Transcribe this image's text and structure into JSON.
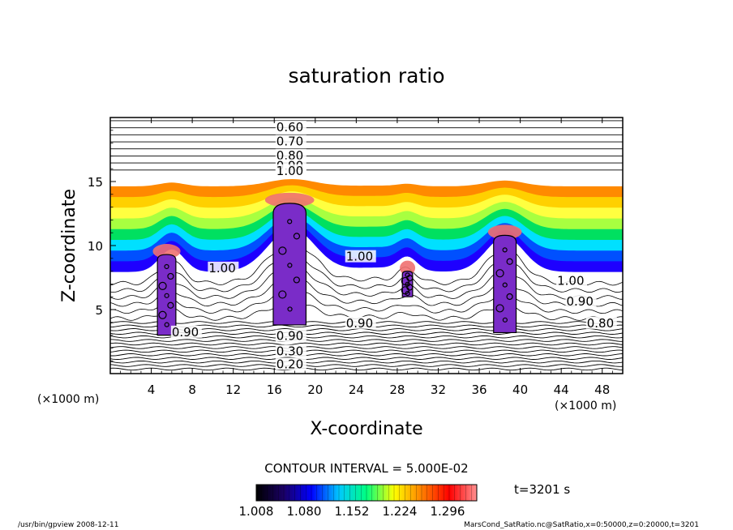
{
  "chart_data": {
    "type": "heatmap",
    "title": "saturation ratio",
    "xlabel": "X-coordinate",
    "ylabel": "Z-coordinate",
    "x_unit": "(×1000 m)",
    "y_unit": "(×1000 m)",
    "xlim": [
      0,
      50
    ],
    "ylim": [
      0,
      20
    ],
    "x_ticks": [
      4,
      8,
      12,
      16,
      20,
      24,
      28,
      32,
      36,
      40,
      44,
      48
    ],
    "y_ticks": [
      5,
      10,
      15
    ],
    "contour_interval_label": "CONTOUR INTERVAL = 5.000E-02",
    "time_label": "t=3201 s",
    "colorbar": {
      "min": 1.008,
      "max": 1.34,
      "tick_labels": [
        "1.008",
        "1.080",
        "1.152",
        "1.224",
        "1.296"
      ],
      "colors": [
        "#000000",
        "#1a0066",
        "#0000ff",
        "#00c8ff",
        "#00ff80",
        "#ffff00",
        "#ff8000",
        "#ff0000",
        "#ff9090"
      ]
    },
    "shade_colors": [
      "#ff3030",
      "#ff8a00",
      "#ffd000",
      "#ffff40",
      "#a8ff40",
      "#00e060",
      "#00e0ff",
      "#0050ff",
      "#1e00ff",
      "#ffffff"
    ],
    "cloud_colors": {
      "cloud": "#7a2cc8",
      "cloud_cap": "#f07070"
    },
    "upper_contours": [
      {
        "label": "0.60",
        "z": 19.3
      },
      {
        "label": "0.70",
        "z": 18.2
      },
      {
        "label": "0.80",
        "z": 17.1
      },
      {
        "label": "0.90",
        "z": 16.3
      },
      {
        "label": "1.00",
        "z": 15.9
      }
    ],
    "lower_contours": [
      {
        "label": "0.90",
        "z": 3.0
      },
      {
        "label": "0.30",
        "z": 1.8
      },
      {
        "label": "0.20",
        "z": 0.8
      }
    ],
    "inline_labels": [
      {
        "label": "1.00",
        "x": 9.6,
        "z": 8.3
      },
      {
        "label": "1.00",
        "x": 23.0,
        "z": 9.2
      },
      {
        "label": "0.90",
        "x": 23.0,
        "z": 4.0
      },
      {
        "label": "1.00",
        "x": 43.6,
        "z": 7.3
      },
      {
        "label": "0.90",
        "x": 44.5,
        "z": 5.7
      },
      {
        "label": "0.80",
        "x": 46.5,
        "z": 4.0
      },
      {
        "label": "0.90",
        "x": 6.0,
        "z": 3.3
      }
    ],
    "clouds": [
      {
        "x_center": 5.5,
        "x_half_width": 0.9,
        "z_bottom": 3.0,
        "z_top": 9.3
      },
      {
        "x_center": 17.5,
        "x_half_width": 1.6,
        "z_bottom": 3.8,
        "z_top": 13.3
      },
      {
        "x_center": 29.0,
        "x_half_width": 0.5,
        "z_bottom": 6.0,
        "z_top": 8.0
      },
      {
        "x_center": 38.5,
        "x_half_width": 1.1,
        "z_bottom": 3.2,
        "z_top": 10.8
      }
    ]
  },
  "footer": {
    "program": "/usr/bin/gpview  2008-12-11",
    "source": "MarsCond_SatRatio.nc@SatRatio,x=0:50000,z=0:20000,t=3201"
  }
}
